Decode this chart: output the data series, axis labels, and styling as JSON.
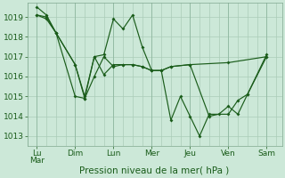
{
  "background_color": "#cce8d8",
  "line_color": "#1a5c1a",
  "grid_color": "#aaccb8",
  "xlabel": "Pression niveau de la mer( hPa )",
  "xlabel_fontsize": 7.5,
  "tick_fontsize": 6.5,
  "ylim": [
    1012.5,
    1019.7
  ],
  "yticks": [
    1013,
    1014,
    1015,
    1016,
    1017,
    1018,
    1019
  ],
  "day_labels": [
    "LuMar",
    "Dim",
    "Lun",
    "Mer",
    "Jeu",
    "Ven",
    "Sam"
  ],
  "day_positions": [
    0,
    2,
    4,
    6,
    8,
    10,
    12
  ],
  "series1_x": [
    0,
    0.5,
    1,
    2,
    2.5,
    3,
    3.5,
    4,
    4.5,
    5,
    5.5,
    6,
    6.5,
    7,
    7.5,
    8,
    8.5,
    9,
    10,
    10.5,
    11,
    12
  ],
  "series1_y": [
    1019.5,
    1019.1,
    1018.2,
    1015.0,
    1014.9,
    1017.0,
    1017.1,
    1018.9,
    1018.4,
    1019.1,
    1017.5,
    1016.3,
    1016.3,
    1013.8,
    1015.0,
    1014.0,
    1013.0,
    1014.1,
    1014.1,
    1014.8,
    1015.1,
    1017.0
  ],
  "series2_x": [
    0,
    0.5,
    1,
    2,
    2.5,
    3,
    3.5,
    4,
    4.5,
    5,
    5.5,
    6,
    6.5,
    7,
    8,
    10,
    12
  ],
  "series2_y": [
    1019.1,
    1019.0,
    1018.2,
    1016.6,
    1015.0,
    1017.0,
    1016.1,
    1016.6,
    1016.6,
    1016.6,
    1016.5,
    1016.3,
    1016.3,
    1016.5,
    1016.6,
    1016.7,
    1017.0
  ],
  "series3_x": [
    0,
    0.5,
    1,
    2,
    2.5,
    3,
    3.5,
    4,
    4.5,
    5,
    5.5,
    6,
    6.5,
    7,
    8,
    9,
    9.5,
    10,
    10.5,
    11,
    12
  ],
  "series3_y": [
    1019.1,
    1018.9,
    1018.2,
    1016.6,
    1014.9,
    1016.0,
    1017.0,
    1016.5,
    1016.6,
    1016.6,
    1016.5,
    1016.3,
    1016.3,
    1016.5,
    1016.6,
    1014.0,
    1014.1,
    1014.5,
    1014.1,
    1015.1,
    1017.1
  ]
}
